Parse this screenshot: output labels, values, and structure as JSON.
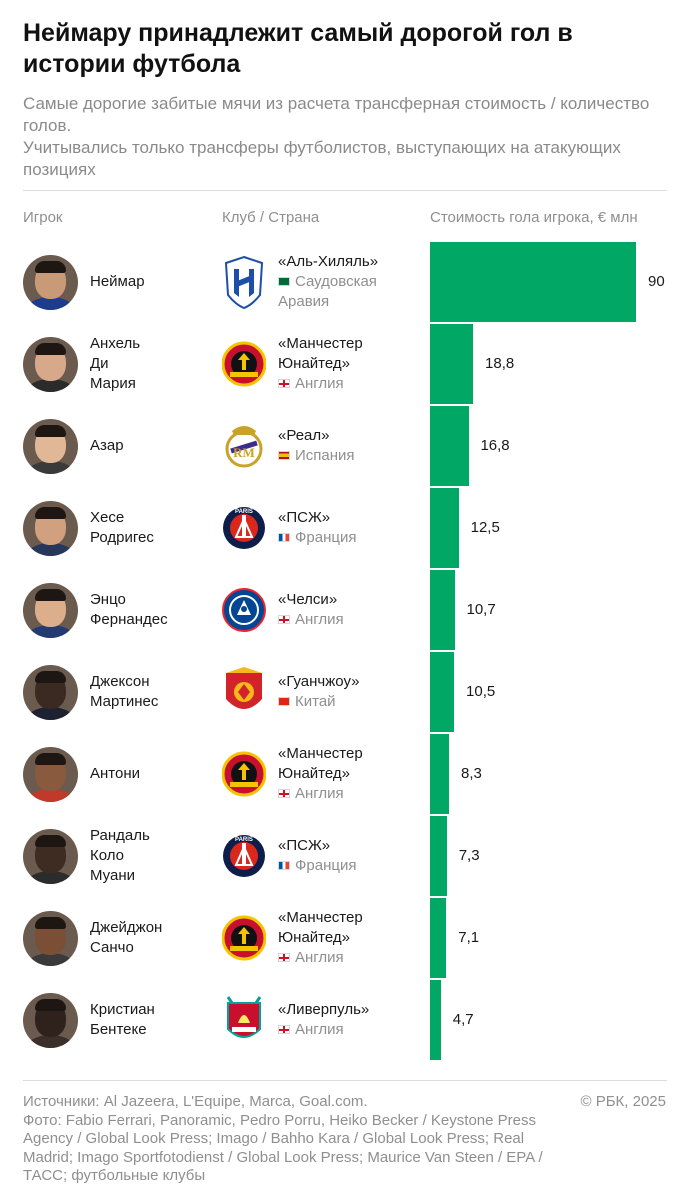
{
  "title": "Неймару принадлежит самый дорогой гол в истории футбола",
  "subtitle": [
    "Самые дорогие забитые мячи из расчета трансферная стоимость / количество голов.",
    "Учитывались только трансферы футболистов, выступающих на атакующих позициях"
  ],
  "columns": {
    "player": "Игрок",
    "club": "Клуб / Страна",
    "value": "Стоимость гола игрока, € млн"
  },
  "chart_data": {
    "type": "bar",
    "orientation": "horizontal",
    "xlim": [
      0,
      90
    ],
    "categories": [
      "Неймар",
      "Анхель Ди Мария",
      "Азар",
      "Хесе Родригес",
      "Энцо Фернандес",
      "Джексон Мартинес",
      "Антони",
      "Рандаль Коло Муани",
      "Джейджон Санчо",
      "Кристиан Бентеке"
    ],
    "values": [
      90,
      18.8,
      16.8,
      12.5,
      10.7,
      10.5,
      8.3,
      7.3,
      7.1,
      4.7
    ],
    "rows": [
      {
        "name": "Неймар",
        "club": "«Аль-Хиляль»",
        "country": "Саудовская Аравия",
        "flag": "saudi-arabia-flag",
        "crest": "al-hilal-crest",
        "value": 90,
        "label": "90"
      },
      {
        "name": "Анхель Ди Мария",
        "club": "«Манчестер Юнайтед»",
        "country": "Англия",
        "flag": "england-flag",
        "crest": "manchester-united-crest",
        "value": 18.8,
        "label": "18,8"
      },
      {
        "name": "Азар",
        "club": "«Реал»",
        "country": "Испания",
        "flag": "spain-flag",
        "crest": "real-madrid-crest",
        "value": 16.8,
        "label": "16,8"
      },
      {
        "name": "Хесе Родригес",
        "club": "«ПСЖ»",
        "country": "Франция",
        "flag": "france-flag",
        "crest": "psg-crest",
        "value": 12.5,
        "label": "12,5"
      },
      {
        "name": "Энцо Фернандес",
        "club": "«Челси»",
        "country": "Англия",
        "flag": "england-flag",
        "crest": "chelsea-crest",
        "value": 10.7,
        "label": "10,7"
      },
      {
        "name": "Джексон Мартинес",
        "club": "«Гуанчжоу»",
        "country": "Китай",
        "flag": "china-flag",
        "crest": "guangzhou-crest",
        "value": 10.5,
        "label": "10,5"
      },
      {
        "name": "Антони",
        "club": "«Манчестер Юнайтед»",
        "country": "Англия",
        "flag": "england-flag",
        "crest": "manchester-united-crest",
        "value": 8.3,
        "label": "8,3"
      },
      {
        "name": "Рандаль Коло Муани",
        "club": "«ПСЖ»",
        "country": "Франция",
        "flag": "france-flag",
        "crest": "psg-crest",
        "value": 7.3,
        "label": "7,3"
      },
      {
        "name": "Джейджон Санчо",
        "club": "«Манчестер Юнайтед»",
        "country": "Англия",
        "flag": "england-flag",
        "crest": "manchester-united-crest",
        "value": 7.1,
        "label": "7,1"
      },
      {
        "name": "Кристиан Бентеке",
        "club": "«Ливерпуль»",
        "country": "Англия",
        "flag": "england-flag",
        "crest": "liverpool-crest",
        "value": 4.7,
        "label": "4,7"
      }
    ]
  },
  "colors": {
    "bar": "#00a765"
  },
  "footer": {
    "sources": "Источники: Al Jazeera, L'Equipe, Marca, Goal.com.",
    "photo": "Фото: Fabio Ferrari, Panoramic, Pedro Porru, Heiko Becker / Keystone Press Agency / Global Look Press; Imago / Bahho Kara / Global Look Press; Real Madrid; Imago Sportfotodienst / Global Look Press; Maurice Van Steen / EPA / ТАСС; футбольные клубы",
    "copyright": "© РБК, 2025"
  }
}
